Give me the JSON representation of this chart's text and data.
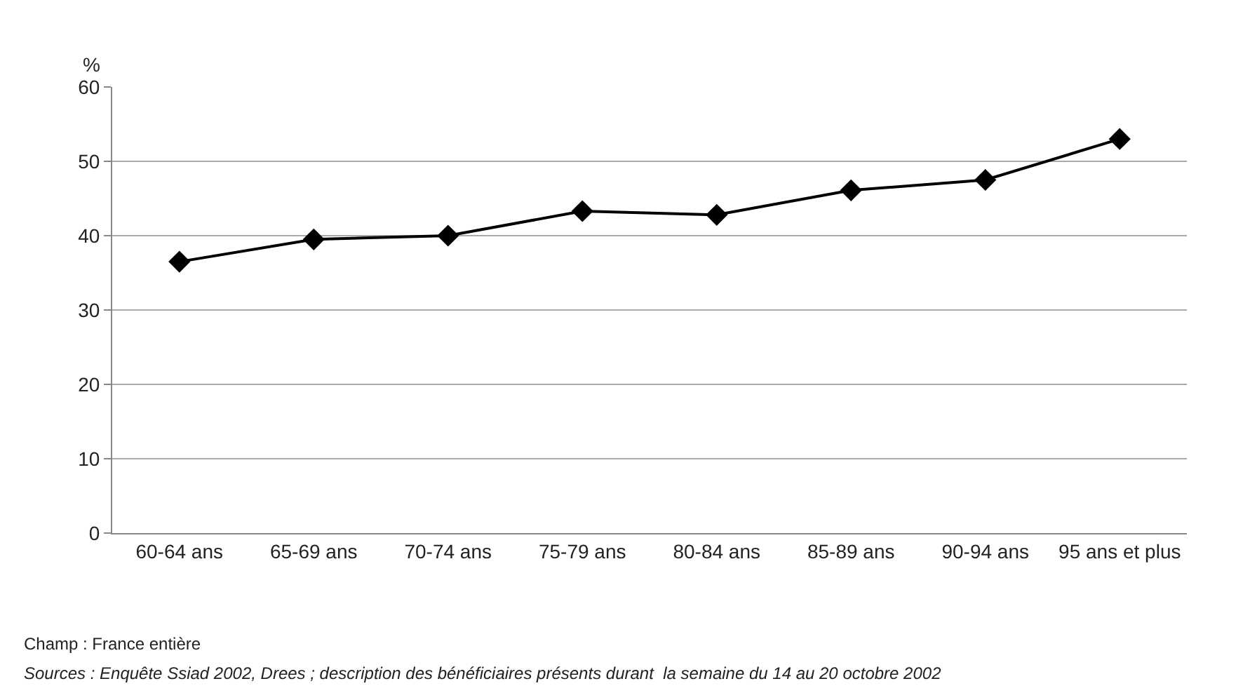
{
  "chart_data": {
    "type": "line",
    "ylabel": "%",
    "categories": [
      "60-64 ans",
      "65-69 ans",
      "70-74 ans",
      "75-79 ans",
      "80-84 ans",
      "85-89 ans",
      "90-94 ans",
      "95 ans et plus"
    ],
    "series": [
      {
        "color": "#000000",
        "values": [
          36.5,
          39.5,
          40,
          43.3,
          42.8,
          46.1,
          47.5,
          53
        ]
      }
    ],
    "ylim": [
      0,
      60
    ],
    "yticks": [
      0,
      10,
      20,
      30,
      40,
      50,
      60
    ],
    "grid": "y",
    "marker": "diamond",
    "line_style": "solid",
    "annotations": [
      "Champ : France entière",
      "Sources : Enquête Ssiad 2002, Drees ; description des bénéficiaires présents durant  la semaine du 14 au 20 octobre 2002"
    ]
  }
}
